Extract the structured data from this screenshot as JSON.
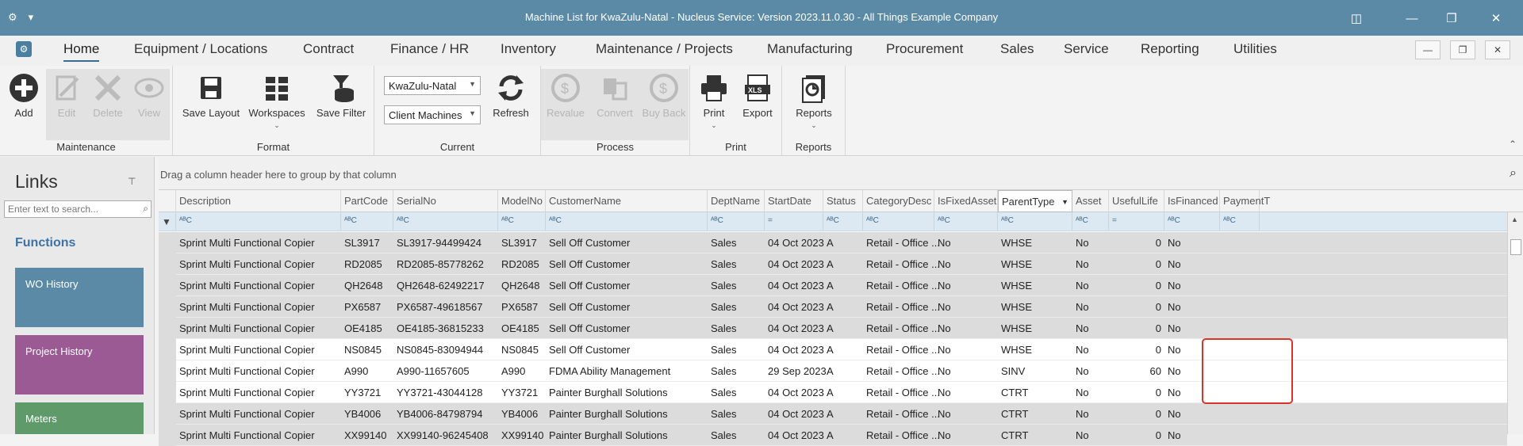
{
  "window": {
    "title": "Machine List for KwaZulu-Natal - Nucleus Service: Version 2023.11.0.30 - All Things Example Company"
  },
  "menu": {
    "tabs": [
      {
        "label": "Home",
        "active": true
      },
      {
        "label": "Equipment / Locations"
      },
      {
        "label": "Contract"
      },
      {
        "label": "Finance / HR"
      },
      {
        "label": "Inventory"
      },
      {
        "label": "Maintenance / Projects"
      },
      {
        "label": "Manufacturing"
      },
      {
        "label": "Procurement"
      },
      {
        "label": "Sales"
      },
      {
        "label": "Service"
      },
      {
        "label": "Reporting"
      },
      {
        "label": "Utilities"
      }
    ]
  },
  "ribbon": {
    "maintenance": {
      "label": "Maintenance",
      "add": "Add",
      "edit": "Edit",
      "delete": "Delete",
      "view": "View"
    },
    "format": {
      "label": "Format",
      "save_layout": "Save Layout",
      "workspaces": "Workspaces",
      "save_filter": "Save Filter"
    },
    "current": {
      "label": "Current",
      "region": "KwaZulu-Natal",
      "scope": "Client Machines",
      "refresh": "Refresh"
    },
    "process": {
      "label": "Process",
      "revalue": "Revalue",
      "convert": "Convert",
      "buy_back": "Buy Back"
    },
    "print": {
      "label": "Print",
      "print": "Print",
      "export": "Export"
    },
    "reports": {
      "label": "Reports",
      "reports": "Reports"
    }
  },
  "links": {
    "title": "Links",
    "search_placeholder": "Enter text to search...",
    "section": "Functions",
    "tiles": [
      {
        "label": "WO History",
        "color": "#5a8aa6"
      },
      {
        "label": "Project History",
        "color": "#9b5a93"
      },
      {
        "label": "Meters",
        "color": "#5f9a6a"
      }
    ]
  },
  "grid": {
    "group_hint": "Drag a column header here to group by that column",
    "columns": [
      "Description",
      "PartCode",
      "SerialNo",
      "ModelNo",
      "CustomerName",
      "DeptName",
      "StartDate",
      "Status",
      "CategoryDesc",
      "IsFixedAsset",
      "ParentType",
      "Asset",
      "UsefulLife",
      "IsFinanced",
      "PaymentT"
    ],
    "filter_glyph": "ᴬᴮC",
    "equals_glyph": "=",
    "rows": [
      [
        "Sprint Multi Functional Copier",
        "SL3917",
        "SL3917-94499424",
        "SL3917",
        "Sell Off Customer",
        "Sales",
        "04 Oct 2023",
        "A",
        "Retail - Office ...",
        "No",
        "WHSE",
        "No",
        "0",
        "No"
      ],
      [
        "Sprint Multi Functional Copier",
        "RD2085",
        "RD2085-85778262",
        "RD2085",
        "Sell Off Customer",
        "Sales",
        "04 Oct 2023",
        "A",
        "Retail - Office ...",
        "No",
        "WHSE",
        "No",
        "0",
        "No"
      ],
      [
        "Sprint Multi Functional Copier",
        "QH2648",
        "QH2648-62492217",
        "QH2648",
        "Sell Off Customer",
        "Sales",
        "04 Oct 2023",
        "A",
        "Retail - Office ...",
        "No",
        "WHSE",
        "No",
        "0",
        "No"
      ],
      [
        "Sprint Multi Functional Copier",
        "PX6587",
        "PX6587-49618567",
        "PX6587",
        "Sell Off Customer",
        "Sales",
        "04 Oct 2023",
        "A",
        "Retail - Office ...",
        "No",
        "WHSE",
        "No",
        "0",
        "No"
      ],
      [
        "Sprint Multi Functional Copier",
        "OE4185",
        "OE4185-36815233",
        "OE4185",
        "Sell Off Customer",
        "Sales",
        "04 Oct 2023",
        "A",
        "Retail - Office ...",
        "No",
        "WHSE",
        "No",
        "0",
        "No"
      ],
      [
        "Sprint Multi Functional Copier",
        "NS0845",
        "NS0845-83094944",
        "NS0845",
        "Sell Off Customer",
        "Sales",
        "04 Oct 2023",
        "A",
        "Retail - Office ...",
        "No",
        "WHSE",
        "No",
        "0",
        "No"
      ],
      [
        "Sprint Multi Functional Copier",
        "A990",
        "A990-11657605",
        "A990",
        "FDMA Ability Management",
        "Sales",
        "29 Sep 2023",
        "A",
        "Retail - Office ...",
        "No",
        "SINV",
        "No",
        "60",
        "No"
      ],
      [
        "Sprint Multi Functional Copier",
        "YY3721",
        "YY3721-43044128",
        "YY3721",
        "Painter Burghall Solutions",
        "Sales",
        "04 Oct 2023",
        "A",
        "Retail - Office ...",
        "No",
        "CTRT",
        "No",
        "0",
        "No"
      ],
      [
        "Sprint Multi Functional Copier",
        "YB4006",
        "YB4006-84798794",
        "YB4006",
        "Painter Burghall Solutions",
        "Sales",
        "04 Oct 2023",
        "A",
        "Retail - Office ...",
        "No",
        "CTRT",
        "No",
        "0",
        "No"
      ],
      [
        "Sprint Multi Functional Copier",
        "XX99140",
        "XX99140-96245408",
        "XX99140",
        "Painter Burghall Solutions",
        "Sales",
        "04 Oct 2023",
        "A",
        "Retail - Office ...",
        "No",
        "CTRT",
        "No",
        "0",
        "No"
      ]
    ],
    "highlighted_rows": [
      5,
      6,
      7
    ]
  }
}
